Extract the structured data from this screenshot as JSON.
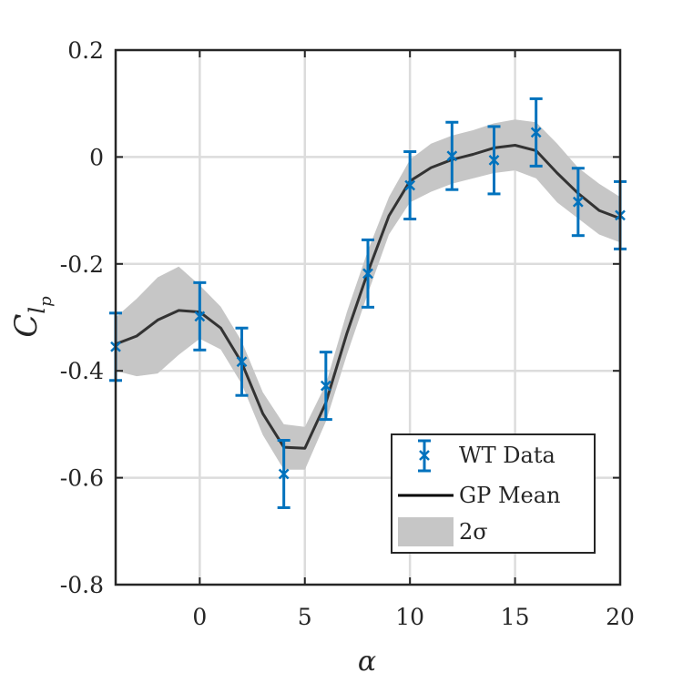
{
  "chart_data": {
    "type": "line",
    "xlabel": "α",
    "ylabel": {
      "base": "C",
      "sub": "l",
      "subsub": "p"
    },
    "xlim": [
      -4,
      20
    ],
    "ylim": [
      -0.8,
      0.2
    ],
    "xticks": [
      0,
      5,
      10,
      15,
      20
    ],
    "xtick_labels": [
      "0",
      "5",
      "10",
      "15",
      "20"
    ],
    "yticks": [
      -0.8,
      -0.6,
      -0.4,
      -0.2,
      0,
      0.2
    ],
    "ytick_labels": [
      "-0.8",
      "-0.6",
      "-0.4",
      "-0.2",
      "0",
      "0.2"
    ],
    "grid": true,
    "legend_position": "bottom-right",
    "legend": [
      "WT Data",
      "GP Mean",
      "2σ"
    ],
    "colors": {
      "data": "#0072BD",
      "mean": "#333333",
      "band": "#c6c6c6",
      "grid": "#dcdcdc",
      "axis": "#262626"
    },
    "series": [
      {
        "name": "WT Data",
        "kind": "errorbar",
        "x": [
          -4,
          0,
          2,
          4,
          6,
          8,
          10,
          12,
          14,
          16,
          18,
          20
        ],
        "y": [
          -0.355,
          -0.298,
          -0.383,
          -0.593,
          -0.428,
          -0.218,
          -0.053,
          0.002,
          -0.006,
          0.046,
          -0.084,
          -0.109
        ],
        "err": [
          0.063,
          0.063,
          0.063,
          0.063,
          0.063,
          0.063,
          0.063,
          0.063,
          0.063,
          0.063,
          0.063,
          0.063
        ]
      },
      {
        "name": "GP Mean",
        "kind": "line",
        "x": [
          -4,
          -3,
          -2,
          -1,
          0,
          1,
          2,
          3,
          4,
          5,
          6,
          7,
          8,
          9,
          10,
          11,
          12,
          13,
          14,
          15,
          16,
          17,
          18,
          19,
          20
        ],
        "y": [
          -0.35,
          -0.335,
          -0.305,
          -0.287,
          -0.29,
          -0.32,
          -0.385,
          -0.48,
          -0.543,
          -0.545,
          -0.46,
          -0.33,
          -0.215,
          -0.11,
          -0.045,
          -0.02,
          -0.005,
          0.005,
          0.017,
          0.022,
          0.012,
          -0.03,
          -0.068,
          -0.1,
          -0.115
        ]
      },
      {
        "name": "2σ",
        "kind": "band",
        "x": [
          -4,
          -3,
          -2,
          -1,
          0,
          1,
          2,
          3,
          4,
          5,
          6,
          7,
          8,
          9,
          10,
          11,
          12,
          13,
          14,
          15,
          16,
          17,
          18,
          19,
          20
        ],
        "upper": [
          -0.3,
          -0.265,
          -0.225,
          -0.205,
          -0.24,
          -0.28,
          -0.345,
          -0.44,
          -0.5,
          -0.505,
          -0.425,
          -0.29,
          -0.175,
          -0.075,
          -0.005,
          0.025,
          0.04,
          0.05,
          0.063,
          0.07,
          0.065,
          0.025,
          -0.02,
          -0.05,
          -0.075
        ],
        "lower": [
          -0.4,
          -0.41,
          -0.405,
          -0.37,
          -0.34,
          -0.36,
          -0.425,
          -0.52,
          -0.585,
          -0.585,
          -0.495,
          -0.37,
          -0.255,
          -0.145,
          -0.085,
          -0.065,
          -0.05,
          -0.04,
          -0.03,
          -0.025,
          -0.04,
          -0.085,
          -0.115,
          -0.145,
          -0.16
        ]
      }
    ]
  }
}
